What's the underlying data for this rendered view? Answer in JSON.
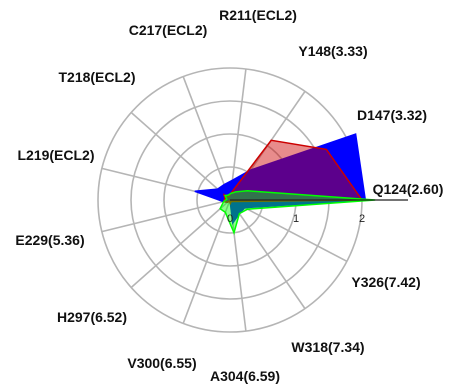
{
  "chart_data": {
    "type": "radar",
    "categories": [
      "Q124(2.60)",
      "D147(3.32)",
      "Y148(3.33)",
      "R211(ECL2)",
      "C217(ECL2)",
      "T218(ECL2)",
      "L219(ECL2)",
      "E229(5.36)",
      "H297(6.52)",
      "V300(6.55)",
      "A304(6.59)",
      "W318(7.34)",
      "Y326(7.42)"
    ],
    "rlim": [
      0,
      2
    ],
    "ticks": [
      0,
      1,
      2
    ],
    "tick_labels": [
      "0",
      "1",
      "2"
    ],
    "grid": true,
    "series": [
      {
        "color": "#0000ff",
        "fill_opacity": 1.0,
        "values": [
          2.05,
          2.15,
          0.55,
          0.3,
          0.25,
          0.25,
          0.55,
          0.1,
          0.05,
          0.0,
          0.35,
          0.25,
          0.25
        ]
      },
      {
        "color": "#cc0000",
        "fill_opacity": 0.45,
        "values": [
          2.0,
          1.65,
          1.1,
          0.1,
          0.05,
          0.12,
          0.08,
          0.1,
          0.05,
          0.02,
          0.05,
          0.03,
          0.05
        ]
      },
      {
        "color": "#00ff00",
        "fill_opacity": 0.45,
        "values": [
          2.2,
          0.3,
          0.15,
          0.1,
          0.08,
          0.1,
          0.05,
          0.1,
          0.2,
          0.2,
          0.5,
          0.25,
          0.3
        ]
      }
    ]
  }
}
